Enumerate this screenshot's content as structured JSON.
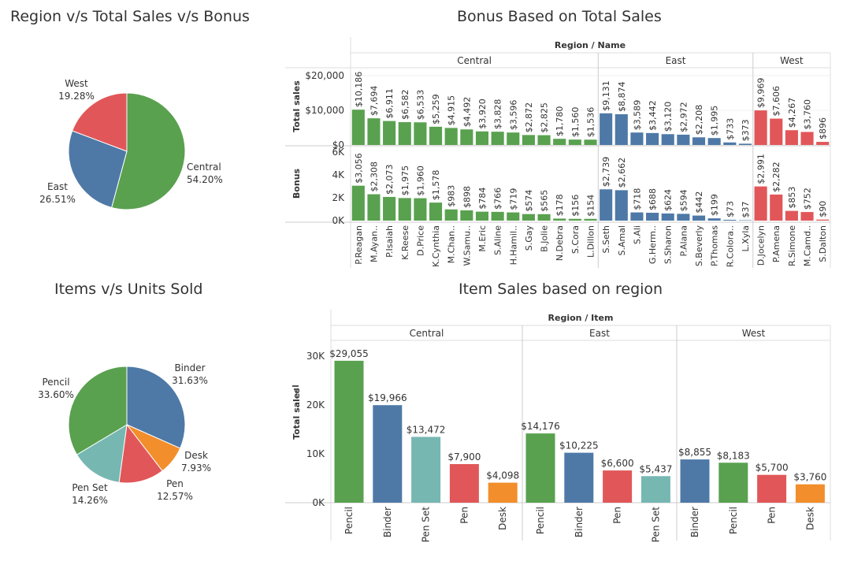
{
  "titles": {
    "pie1": "Region v/s Total Sales v/s Bonus",
    "bonus": "Bonus Based on Total Sales",
    "pie2": "Items v/s Units Sold",
    "items": "Item Sales based on region"
  },
  "colors": {
    "green": "#59a14f",
    "blue": "#4e79a7",
    "red": "#e15759",
    "teal": "#76b7b2",
    "orange": "#f28e2b"
  },
  "chart_data": [
    {
      "type": "pie",
      "title": "Region v/s Total Sales v/s Bonus",
      "slices": [
        {
          "label": "Central",
          "pct": "54.20%",
          "value": 54.2,
          "color": "green"
        },
        {
          "label": "East",
          "pct": "26.51%",
          "value": 26.51,
          "color": "blue"
        },
        {
          "label": "West",
          "pct": "19.28%",
          "value": 19.28,
          "color": "red"
        }
      ]
    },
    {
      "type": "bar",
      "title": "Bonus Based on Total Sales",
      "header": "Region / Name",
      "ylabel_top": "Total sales",
      "ylabel_bottom": "Bonus",
      "top_ticks": [
        {
          "v": 0,
          "t": "$0"
        },
        {
          "v": 10000,
          "t": "$10,000"
        },
        {
          "v": 20000,
          "t": "$20,000"
        }
      ],
      "top_max": 20000,
      "bottom_ticks": [
        {
          "v": 0,
          "t": "0K"
        },
        {
          "v": 2000,
          "t": "2K"
        },
        {
          "v": 4000,
          "t": "4K"
        },
        {
          "v": 6000,
          "t": "6K"
        }
      ],
      "bottom_max": 6000,
      "groups": [
        {
          "region": "Central",
          "color": "green",
          "items": [
            {
              "name": "P.Reagan",
              "sales": 10186,
              "sales_label": "$10,186",
              "bonus": 3056,
              "bonus_label": "$3,056"
            },
            {
              "name": "M.Ayan..",
              "sales": 7694,
              "sales_label": "$7,694",
              "bonus": 2308,
              "bonus_label": "$2,308"
            },
            {
              "name": "P.Isaiah",
              "sales": 6911,
              "sales_label": "$6,911",
              "bonus": 2073,
              "bonus_label": "$2,073"
            },
            {
              "name": "K.Reese",
              "sales": 6582,
              "sales_label": "$6,582",
              "bonus": 1975,
              "bonus_label": "$1,975"
            },
            {
              "name": "D.Price",
              "sales": 6533,
              "sales_label": "$6,533",
              "bonus": 1960,
              "bonus_label": "$1,960"
            },
            {
              "name": "K.Cynthia",
              "sales": 5259,
              "sales_label": "$5,259",
              "bonus": 1578,
              "bonus_label": "$1,578"
            },
            {
              "name": "M.Chan..",
              "sales": 4915,
              "sales_label": "$4,915",
              "bonus": 983,
              "bonus_label": "$983"
            },
            {
              "name": "W.Samu..",
              "sales": 4492,
              "sales_label": "$4,492",
              "bonus": 898,
              "bonus_label": "$898"
            },
            {
              "name": "M.Eric",
              "sales": 3920,
              "sales_label": "$3,920",
              "bonus": 784,
              "bonus_label": "$784"
            },
            {
              "name": "S.Aline",
              "sales": 3828,
              "sales_label": "$3,828",
              "bonus": 766,
              "bonus_label": "$766"
            },
            {
              "name": "H.Hamil..",
              "sales": 3596,
              "sales_label": "$3,596",
              "bonus": 719,
              "bonus_label": "$719"
            },
            {
              "name": "S.Gay",
              "sales": 2872,
              "sales_label": "$2,872",
              "bonus": 574,
              "bonus_label": "$574"
            },
            {
              "name": "B.Jolie",
              "sales": 2825,
              "sales_label": "$2,825",
              "bonus": 565,
              "bonus_label": "$565"
            },
            {
              "name": "N.Debra",
              "sales": 1780,
              "sales_label": "$1,780",
              "bonus": 178,
              "bonus_label": "$178"
            },
            {
              "name": "S.Cora",
              "sales": 1560,
              "sales_label": "$1,560",
              "bonus": 156,
              "bonus_label": "$156"
            },
            {
              "name": "L.Dillon",
              "sales": 1536,
              "sales_label": "$1,536",
              "bonus": 154,
              "bonus_label": "$154"
            }
          ]
        },
        {
          "region": "East",
          "color": "blue",
          "items": [
            {
              "name": "S.Seth",
              "sales": 9131,
              "sales_label": "$9,131",
              "bonus": 2739,
              "bonus_label": "$2,739"
            },
            {
              "name": "S.Amal",
              "sales": 8874,
              "sales_label": "$8,874",
              "bonus": 2662,
              "bonus_label": "$2,662"
            },
            {
              "name": "S.Ali",
              "sales": 3589,
              "sales_label": "$3,589",
              "bonus": 718,
              "bonus_label": "$718"
            },
            {
              "name": "G.Herm..",
              "sales": 3442,
              "sales_label": "$3,442",
              "bonus": 688,
              "bonus_label": "$688"
            },
            {
              "name": "S.Sharon",
              "sales": 3120,
              "sales_label": "$3,120",
              "bonus": 624,
              "bonus_label": "$624"
            },
            {
              "name": "P.Alana",
              "sales": 2972,
              "sales_label": "$2,972",
              "bonus": 594,
              "bonus_label": "$594"
            },
            {
              "name": "S.Beverly",
              "sales": 2208,
              "sales_label": "$2,208",
              "bonus": 442,
              "bonus_label": "$442"
            },
            {
              "name": "P.Thomas",
              "sales": 1995,
              "sales_label": "$1,995",
              "bonus": 199,
              "bonus_label": "$199"
            },
            {
              "name": "R.Colora..",
              "sales": 733,
              "sales_label": "$733",
              "bonus": 73,
              "bonus_label": "$73"
            },
            {
              "name": "L.Xyla",
              "sales": 373,
              "sales_label": "$373",
              "bonus": 37,
              "bonus_label": "$37"
            }
          ]
        },
        {
          "region": "West",
          "color": "red",
          "items": [
            {
              "name": "D.Jocelyn",
              "sales": 9969,
              "sales_label": "$9,969",
              "bonus": 2991,
              "bonus_label": "$2,991"
            },
            {
              "name": "P.Amena",
              "sales": 7606,
              "sales_label": "$7,606",
              "bonus": 2282,
              "bonus_label": "$2,282"
            },
            {
              "name": "R.Simone",
              "sales": 4267,
              "sales_label": "$4,267",
              "bonus": 853,
              "bonus_label": "$853"
            },
            {
              "name": "M.Camd..",
              "sales": 3760,
              "sales_label": "$3,760",
              "bonus": 752,
              "bonus_label": "$752"
            },
            {
              "name": "S.Dalton",
              "sales": 896,
              "sales_label": "$896",
              "bonus": 90,
              "bonus_label": "$90"
            }
          ]
        }
      ]
    },
    {
      "type": "pie",
      "title": "Items v/s Units Sold",
      "slices": [
        {
          "label": "Binder",
          "pct": "31.63%",
          "value": 31.63,
          "color": "blue"
        },
        {
          "label": "Desk",
          "pct": "7.93%",
          "value": 7.93,
          "color": "orange"
        },
        {
          "label": "Pen",
          "pct": "12.57%",
          "value": 12.57,
          "color": "red"
        },
        {
          "label": "Pen Set",
          "pct": "14.26%",
          "value": 14.26,
          "color": "teal"
        },
        {
          "label": "Pencil",
          "pct": "33.60%",
          "value": 33.6,
          "color": "green"
        }
      ]
    },
    {
      "type": "bar",
      "title": "Item Sales based on region",
      "header": "Region / Item",
      "ylabel": "Total sales",
      "ticks": [
        {
          "v": 0,
          "t": "0K"
        },
        {
          "v": 10000,
          "t": "10K"
        },
        {
          "v": 20000,
          "t": "20K"
        },
        {
          "v": 30000,
          "t": "30K"
        }
      ],
      "ymax": 30000,
      "groups": [
        {
          "region": "Central",
          "items": [
            {
              "name": "Pencil",
              "value": 29055,
              "label": "$29,055",
              "color": "green"
            },
            {
              "name": "Binder",
              "value": 19966,
              "label": "$19,966",
              "color": "blue"
            },
            {
              "name": "Pen Set",
              "value": 13472,
              "label": "$13,472",
              "color": "teal"
            },
            {
              "name": "Pen",
              "value": 7900,
              "label": "$7,900",
              "color": "red"
            },
            {
              "name": "Desk",
              "value": 4098,
              "label": "$4,098",
              "color": "orange"
            }
          ]
        },
        {
          "region": "East",
          "items": [
            {
              "name": "Pencil",
              "value": 14176,
              "label": "$14,176",
              "color": "green"
            },
            {
              "name": "Binder",
              "value": 10225,
              "label": "$10,225",
              "color": "blue"
            },
            {
              "name": "Pen",
              "value": 6600,
              "label": "$6,600",
              "color": "red"
            },
            {
              "name": "Pen Set",
              "value": 5437,
              "label": "$5,437",
              "color": "teal"
            }
          ]
        },
        {
          "region": "West",
          "items": [
            {
              "name": "Binder",
              "value": 8855,
              "label": "$8,855",
              "color": "blue"
            },
            {
              "name": "Pencil",
              "value": 8183,
              "label": "$8,183",
              "color": "green"
            },
            {
              "name": "Pen",
              "value": 5700,
              "label": "$5,700",
              "color": "red"
            },
            {
              "name": "Desk",
              "value": 3760,
              "label": "$3,760",
              "color": "orange"
            }
          ]
        }
      ]
    }
  ]
}
